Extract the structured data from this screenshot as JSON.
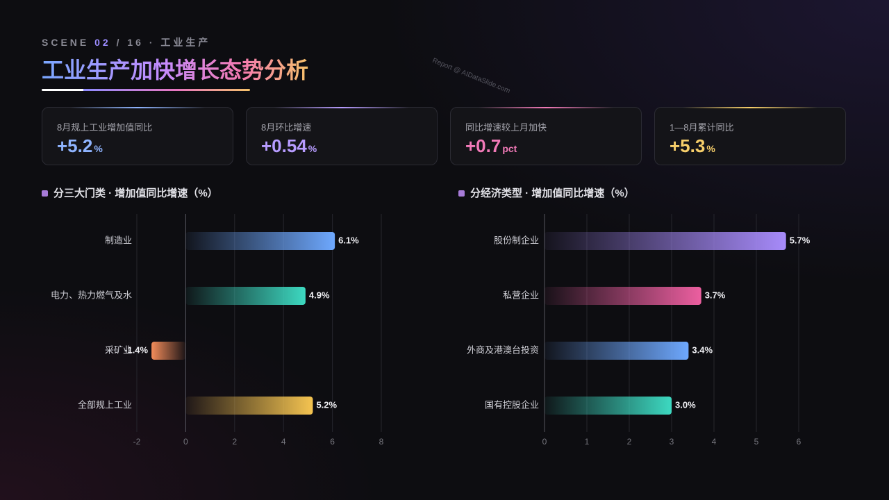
{
  "header": {
    "scene": "SCENE",
    "index": "02",
    "total": "/ 16",
    "section": "工业生产",
    "title": "工业生产加快增长态势分析",
    "watermark": "Report @ AIDataSlide.com"
  },
  "kpis": [
    {
      "label": "8月规上工业增加值同比",
      "value": "+5.2",
      "unit": "%",
      "color": "#8fb4ff"
    },
    {
      "label": "8月环比增速",
      "value": "+0.54",
      "unit": "%",
      "color": "#b79cff"
    },
    {
      "label": "同比增速较上月加快",
      "value": "+0.7",
      "unit": "pct",
      "color": "#f27ab8"
    },
    {
      "label": "1—8月累计同比",
      "value": "+5.3",
      "unit": "%",
      "color": "#f7cf6a"
    }
  ],
  "chart_data": [
    {
      "type": "bar",
      "orientation": "horizontal",
      "title": "分三大门类 · 增加值同比增速（%）",
      "categories": [
        "制造业",
        "电力、热力燃气及水",
        "采矿业",
        "全部规上工业"
      ],
      "values": [
        6.1,
        4.9,
        -1.4,
        5.2
      ],
      "value_labels": [
        "6.1%",
        "4.9%",
        "-1.4%",
        "5.2%"
      ],
      "colors": [
        "#6ea8fe",
        "#3dd9c1",
        "#f28c5a",
        "#f5c451"
      ],
      "xlim": [
        -2,
        8
      ],
      "xticks": [
        -2,
        0,
        2,
        4,
        6,
        8
      ],
      "grid": true
    },
    {
      "type": "bar",
      "orientation": "horizontal",
      "title": "分经济类型 · 增加值同比增速（%）",
      "categories": [
        "股份制企业",
        "私营企业",
        "外商及港澳台投资",
        "国有控股企业"
      ],
      "values": [
        5.7,
        3.7,
        3.4,
        3.0
      ],
      "value_labels": [
        "5.7%",
        "3.7%",
        "3.4%",
        "3.0%"
      ],
      "colors": [
        "#a78bfa",
        "#ec5fa0",
        "#6ea8fe",
        "#3dd9c1"
      ],
      "xlim": [
        0,
        6
      ],
      "xticks": [
        0,
        1,
        2,
        3,
        4,
        5,
        6
      ],
      "grid": true
    }
  ]
}
